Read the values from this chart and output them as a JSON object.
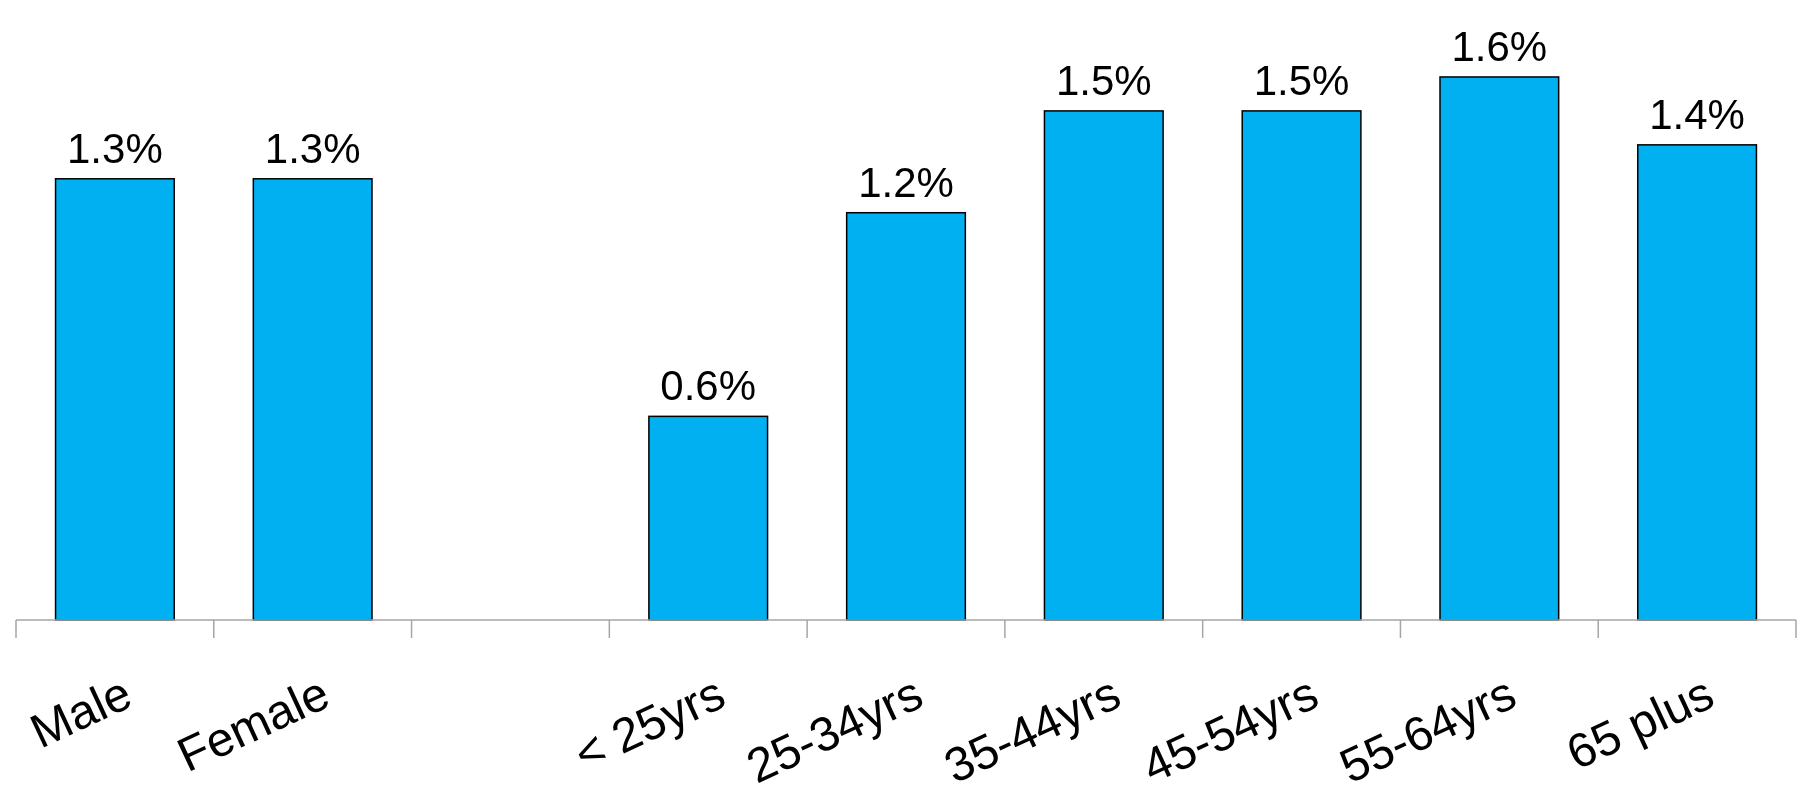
{
  "chart_data": {
    "type": "bar",
    "categories": [
      "Male",
      "Female",
      null,
      "< 25yrs",
      "25-34yrs",
      "35-44yrs",
      "45-54yrs",
      "55-64yrs",
      "65 plus"
    ],
    "values": [
      1.3,
      1.3,
      null,
      0.6,
      1.2,
      1.5,
      1.5,
      1.6,
      1.4
    ],
    "value_labels": [
      "1.3%",
      "1.3%",
      null,
      "0.6%",
      "1.2%",
      "1.5%",
      "1.5%",
      "1.6%",
      "1.4%"
    ],
    "color": "#00b0f0"
  }
}
